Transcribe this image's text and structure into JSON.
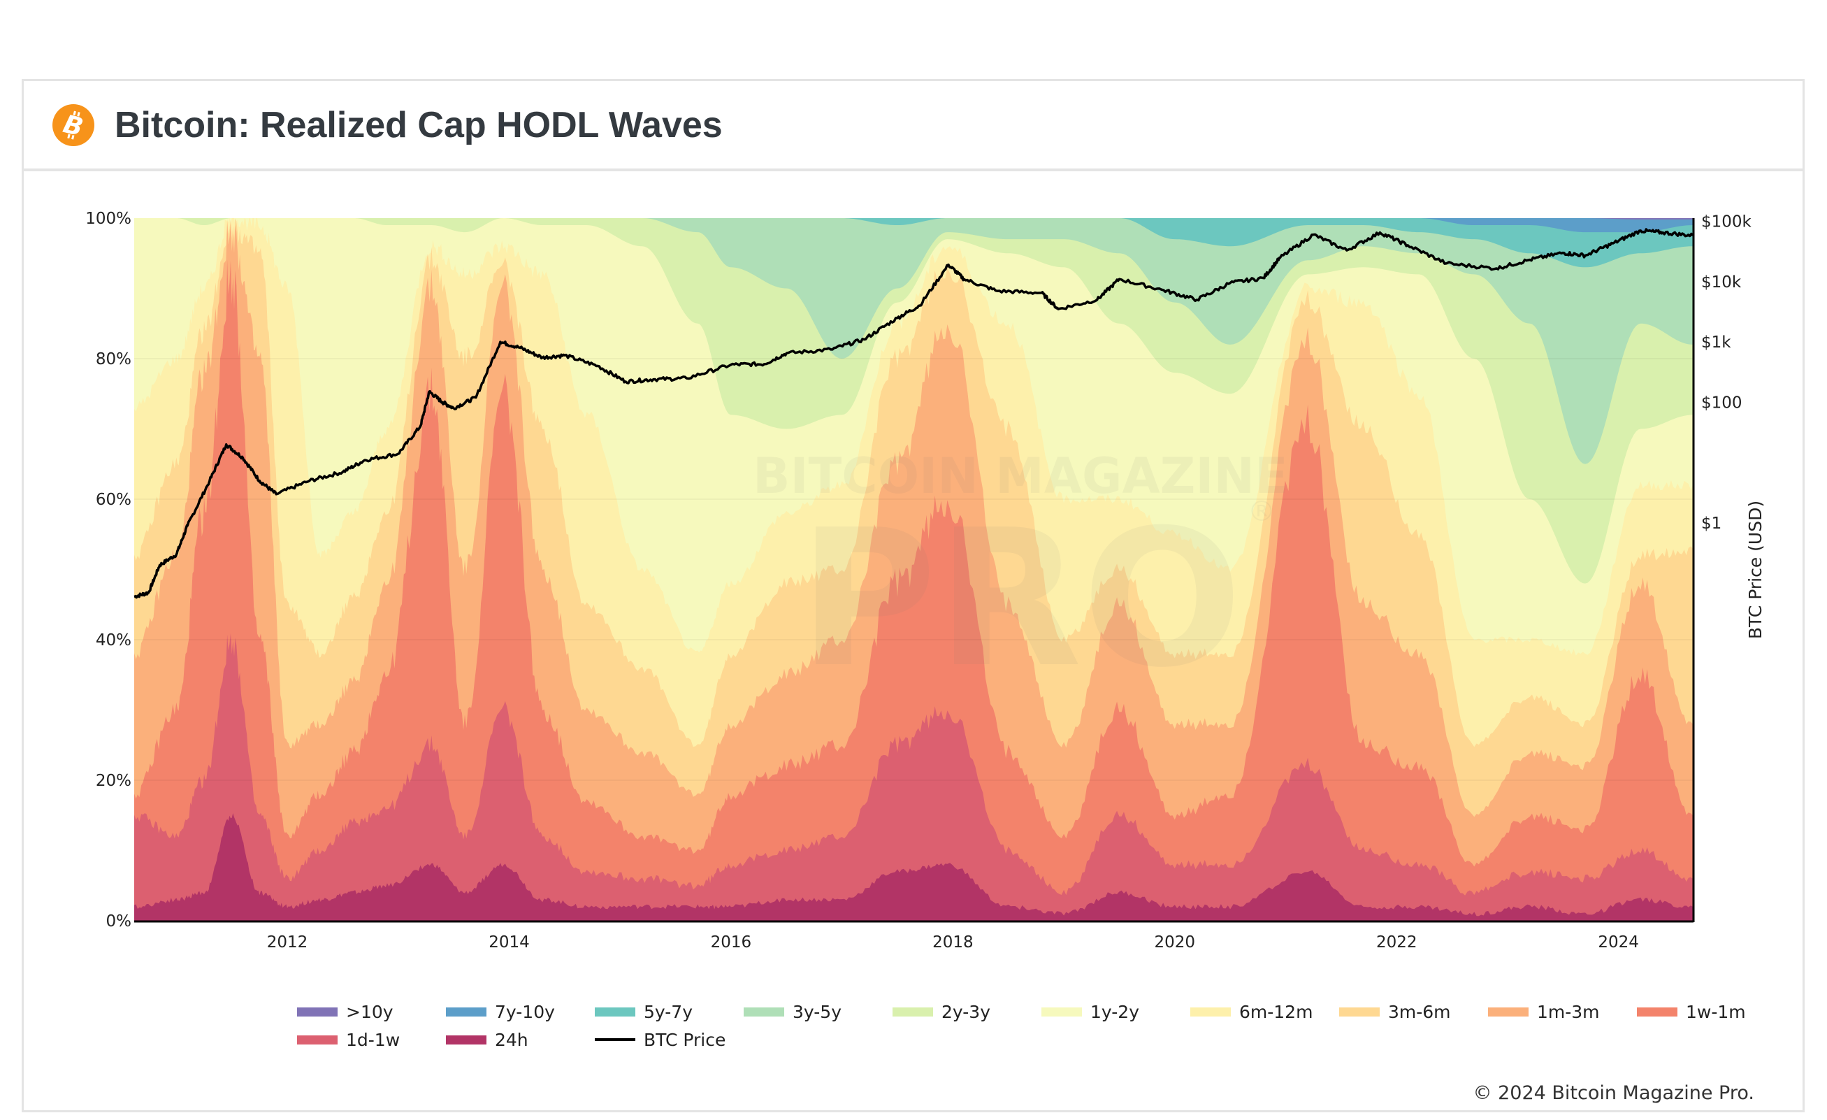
{
  "card": {
    "title": "Bitcoin: Realized Cap HODL Waves",
    "icon": "bitcoin-logo-icon",
    "brand_color": "#f7931a"
  },
  "footer": {
    "copyright": "© 2024 Bitcoin Magazine Pro."
  },
  "watermark": {
    "line1": "BITCOIN MAGAZINE",
    "line2": "PRO",
    "mark": "®"
  },
  "chart_data": {
    "type": "area",
    "title": "Bitcoin: Realized Cap HODL Waves",
    "stacking": "percent (cumulative top edge of each band, bottom to top)",
    "xlabel": "",
    "ylabel_left": "",
    "ylabel_right": "BTC Price (USD)",
    "x_range": [
      2010.62,
      2024.67
    ],
    "y_left_range": [
      0,
      100
    ],
    "y_left_ticks": [
      "0%",
      "20%",
      "40%",
      "60%",
      "80%",
      "100%"
    ],
    "y_left_tick_values": [
      0,
      20,
      40,
      60,
      80,
      100
    ],
    "y_right_scale": "log",
    "y_right_ticks": [
      "$1",
      "$100",
      "$1k",
      "$10k",
      "$100k"
    ],
    "y_right_tick_values": [
      1,
      100,
      1000,
      10000,
      100000
    ],
    "y_right_range": [
      0.03,
      150000
    ],
    "x_ticks": [
      "2012",
      "2014",
      "2016",
      "2018",
      "2020",
      "2022",
      "2024"
    ],
    "x_tick_values": [
      2012,
      2014,
      2016,
      2018,
      2020,
      2022,
      2024
    ],
    "grid": true,
    "legend_position": "bottom",
    "bands": [
      {
        "name": ">10y",
        "color": "#8073b6"
      },
      {
        "name": "7y-10y",
        "color": "#5c9ec9"
      },
      {
        "name": "5y-7y",
        "color": "#6cc7bf"
      },
      {
        "name": "3y-5y",
        "color": "#afdfb7"
      },
      {
        "name": "2y-3y",
        "color": "#d9f0ad"
      },
      {
        "name": "1y-2y",
        "color": "#f6f9bd"
      },
      {
        "name": "6m-12m",
        "color": "#fdf0ab"
      },
      {
        "name": "3m-6m",
        "color": "#fed892"
      },
      {
        "name": "1m-3m",
        "color": "#fbb07b"
      },
      {
        "name": "1w-1m",
        "color": "#f3836b"
      },
      {
        "name": "1d-1w",
        "color": "#dc6070"
      },
      {
        "name": "24h",
        "color": "#b23466"
      }
    ],
    "price_series": {
      "name": "BTC Price",
      "color": "#000000"
    },
    "legend": [
      ">10y",
      "7y-10y",
      "5y-7y",
      "3y-5y",
      "2y-3y",
      "1y-2y",
      "6m-12m",
      "3m-6m",
      "1m-3m",
      "1w-1m",
      "1d-1w",
      "24h",
      "BTC Price"
    ],
    "x": [
      2010.62,
      2011.0,
      2011.25,
      2011.5,
      2011.75,
      2012.0,
      2012.3,
      2012.6,
      2012.9,
      2013.3,
      2013.6,
      2013.95,
      2014.3,
      2014.7,
      2015.2,
      2015.7,
      2016.0,
      2016.5,
      2017.0,
      2017.5,
      2017.95,
      2018.5,
      2019.0,
      2019.5,
      2020.0,
      2020.5,
      2021.2,
      2021.7,
      2022.2,
      2022.7,
      2023.2,
      2023.7,
      2024.2,
      2024.67
    ],
    "cumulative_top": {
      "24h": [
        2,
        3,
        4,
        15,
        4,
        2,
        3,
        4,
        5,
        8,
        4,
        8,
        3,
        2,
        2,
        2,
        2,
        3,
        3,
        7,
        8,
        2,
        1,
        4,
        2,
        2,
        7,
        2,
        2,
        1,
        2,
        1,
        3,
        2
      ],
      "1d-1w": [
        15,
        12,
        20,
        40,
        15,
        6,
        10,
        14,
        16,
        25,
        12,
        30,
        12,
        7,
        6,
        5,
        8,
        10,
        12,
        25,
        30,
        10,
        4,
        15,
        8,
        8,
        22,
        10,
        8,
        4,
        7,
        6,
        10,
        6
      ],
      "1w-1m": [
        18,
        30,
        58,
        92,
        40,
        12,
        18,
        24,
        35,
        75,
        28,
        75,
        30,
        17,
        12,
        10,
        18,
        22,
        25,
        48,
        60,
        24,
        12,
        30,
        15,
        18,
        70,
        25,
        22,
        8,
        15,
        13,
        35,
        15
      ],
      "1m-3m": [
        38,
        52,
        78,
        98,
        80,
        25,
        28,
        34,
        48,
        90,
        50,
        90,
        50,
        30,
        24,
        18,
        28,
        35,
        40,
        65,
        85,
        45,
        25,
        45,
        28,
        28,
        82,
        45,
        38,
        15,
        24,
        22,
        48,
        28
      ],
      "3m-6m": [
        52,
        65,
        84,
        99,
        95,
        45,
        38,
        46,
        58,
        94,
        80,
        93,
        70,
        45,
        36,
        25,
        38,
        48,
        50,
        80,
        93,
        70,
        40,
        50,
        38,
        38,
        88,
        70,
        55,
        25,
        32,
        28,
        52,
        53
      ],
      "6m-12m": [
        73,
        80,
        90,
        100,
        99,
        90,
        52,
        58,
        70,
        96,
        92,
        96,
        92,
        72,
        50,
        38,
        48,
        58,
        62,
        85,
        96,
        85,
        60,
        60,
        55,
        50,
        90,
        88,
        75,
        40,
        40,
        38,
        62,
        62
      ],
      "1y-2y": [
        100,
        100,
        99,
        100,
        100,
        100,
        100,
        100,
        99,
        99,
        98,
        100,
        99,
        99,
        96,
        85,
        72,
        70,
        72,
        88,
        97,
        95,
        93,
        85,
        78,
        75,
        92,
        93,
        92,
        80,
        60,
        48,
        70,
        72
      ],
      "2y-3y": [
        100,
        100,
        100,
        100,
        100,
        100,
        100,
        100,
        100,
        100,
        100,
        100,
        100,
        100,
        100,
        98,
        93,
        90,
        80,
        90,
        98,
        97,
        97,
        95,
        88,
        82,
        94,
        96,
        95,
        92,
        85,
        65,
        85,
        82
      ],
      "3y-5y": [
        100,
        100,
        100,
        100,
        100,
        100,
        100,
        100,
        100,
        100,
        100,
        100,
        100,
        100,
        100,
        100,
        100,
        100,
        100,
        99,
        100,
        100,
        100,
        100,
        97,
        96,
        99,
        99,
        98,
        97,
        95,
        93,
        95,
        96
      ],
      "5y-7y": [
        100,
        100,
        100,
        100,
        100,
        100,
        100,
        100,
        100,
        100,
        100,
        100,
        100,
        100,
        100,
        100,
        100,
        100,
        100,
        100,
        100,
        100,
        100,
        100,
        100,
        100,
        100,
        100,
        100,
        99,
        99,
        98,
        98,
        99
      ],
      "7y-10y": [
        100,
        100,
        100,
        100,
        100,
        100,
        100,
        100,
        100,
        100,
        100,
        100,
        100,
        100,
        100,
        100,
        100,
        100,
        100,
        100,
        100,
        100,
        100,
        100,
        100,
        100,
        100,
        100,
        100,
        100,
        100,
        100,
        99.8,
        99.8
      ],
      ">10y": [
        100,
        100,
        100,
        100,
        100,
        100,
        100,
        100,
        100,
        100,
        100,
        100,
        100,
        100,
        100,
        100,
        100,
        100,
        100,
        100,
        100,
        100,
        100,
        100,
        100,
        100,
        100,
        100,
        100,
        100,
        100,
        100,
        100,
        100
      ]
    },
    "price": {
      "x": [
        2010.62,
        2010.75,
        2010.85,
        2011.0,
        2011.1,
        2011.3,
        2011.45,
        2011.6,
        2011.75,
        2011.9,
        2012.2,
        2012.5,
        2012.7,
        2013.0,
        2013.2,
        2013.28,
        2013.4,
        2013.5,
        2013.7,
        2013.92,
        2014.1,
        2014.3,
        2014.5,
        2014.8,
        2015.05,
        2015.3,
        2015.6,
        2016.0,
        2016.3,
        2016.5,
        2016.9,
        2017.2,
        2017.5,
        2017.7,
        2017.96,
        2018.1,
        2018.4,
        2018.8,
        2018.95,
        2019.3,
        2019.5,
        2019.9,
        2020.2,
        2020.5,
        2020.8,
        2020.95,
        2021.25,
        2021.55,
        2021.85,
        2022.1,
        2022.45,
        2022.9,
        2023.2,
        2023.5,
        2023.7,
        2023.95,
        2024.2,
        2024.4,
        2024.67
      ],
      "usd": [
        0.06,
        0.07,
        0.2,
        0.3,
        0.9,
        5,
        20,
        12,
        5,
        3,
        5,
        7,
        11,
        14,
        40,
        150,
        100,
        80,
        120,
        1000,
        800,
        550,
        600,
        400,
        220,
        240,
        250,
        420,
        430,
        650,
        750,
        1100,
        2500,
        4000,
        19000,
        11000,
        7000,
        6500,
        3500,
        5000,
        11000,
        7200,
        5000,
        9500,
        11500,
        25000,
        60000,
        33000,
        65000,
        40000,
        20000,
        16500,
        23000,
        30000,
        27000,
        43000,
        70000,
        65000,
        58000
      ]
    }
  }
}
